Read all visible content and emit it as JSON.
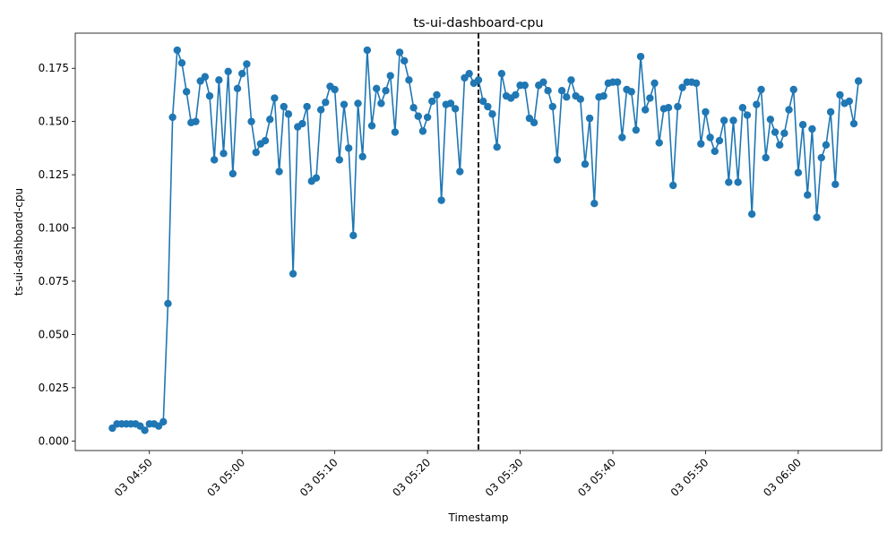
{
  "chart_data": {
    "type": "line",
    "title": "ts-ui-dashboard-cpu",
    "xlabel": "Timestamp",
    "ylabel": "ts-ui-dashboard-cpu",
    "x_start": "03 04:46",
    "x_interval_minutes": 0.5,
    "xlim": [
      "03 04:42",
      "03 06:09"
    ],
    "ylim": [
      -0.0045,
      0.1915
    ],
    "x_ticks": [
      "03 04:50",
      "03 05:00",
      "03 05:10",
      "03 05:20",
      "03 05:30",
      "03 05:40",
      "03 05:50",
      "03 06:00"
    ],
    "y_ticks": [
      0.0,
      0.025,
      0.05,
      0.075,
      0.1,
      0.125,
      0.15,
      0.175
    ],
    "y_tick_labels": [
      "0.000",
      "0.025",
      "0.050",
      "0.075",
      "0.100",
      "0.125",
      "0.150",
      "0.175"
    ],
    "vline_x": "03 05:25:30",
    "series": [
      {
        "color": "#1f77b4",
        "values": [
          0.006,
          0.008,
          0.008,
          0.008,
          0.008,
          0.008,
          0.007,
          0.005,
          0.008,
          0.008,
          0.007,
          0.009,
          0.0645,
          0.152,
          0.1835,
          0.1775,
          0.164,
          0.1495,
          0.15,
          0.169,
          0.171,
          0.162,
          0.132,
          0.1695,
          0.135,
          0.1735,
          0.1255,
          0.1655,
          0.1725,
          0.177,
          0.15,
          0.1355,
          0.1395,
          0.141,
          0.151,
          0.161,
          0.1265,
          0.157,
          0.1535,
          0.0785,
          0.1475,
          0.149,
          0.157,
          0.122,
          0.1235,
          0.1555,
          0.159,
          0.1665,
          0.165,
          0.132,
          0.158,
          0.1375,
          0.0965,
          0.1585,
          0.1335,
          0.1835,
          0.148,
          0.1655,
          0.1585,
          0.1645,
          0.1715,
          0.145,
          0.1825,
          0.1785,
          0.1695,
          0.1565,
          0.1525,
          0.1455,
          0.152,
          0.1595,
          0.1625,
          0.113,
          0.158,
          0.1585,
          0.156,
          0.1265,
          0.1705,
          0.1725,
          0.168,
          0.1695,
          0.1595,
          0.157,
          0.1535,
          0.138,
          0.1725,
          0.162,
          0.161,
          0.1625,
          0.167,
          0.167,
          0.1515,
          0.1495,
          0.167,
          0.1685,
          0.1645,
          0.157,
          0.132,
          0.1645,
          0.1615,
          0.1695,
          0.162,
          0.1605,
          0.13,
          0.1515,
          0.1115,
          0.1615,
          0.162,
          0.168,
          0.1685,
          0.1685,
          0.1425,
          0.165,
          0.164,
          0.146,
          0.1805,
          0.1555,
          0.161,
          0.168,
          0.14,
          0.156,
          0.1565,
          0.12,
          0.157,
          0.166,
          0.1685,
          0.1685,
          0.168,
          0.1395,
          0.1545,
          0.1425,
          0.136,
          0.141,
          0.1505,
          0.1215,
          0.1505,
          0.1215,
          0.1565,
          0.153,
          0.1065,
          0.158,
          0.165,
          0.133,
          0.151,
          0.145,
          0.139,
          0.1445,
          0.1555,
          0.165,
          0.126,
          0.1485,
          0.1155,
          0.1465,
          0.105,
          0.133,
          0.139,
          0.1545,
          0.1205,
          0.1625,
          0.1585,
          0.1595,
          0.149,
          0.169
        ]
      }
    ]
  }
}
